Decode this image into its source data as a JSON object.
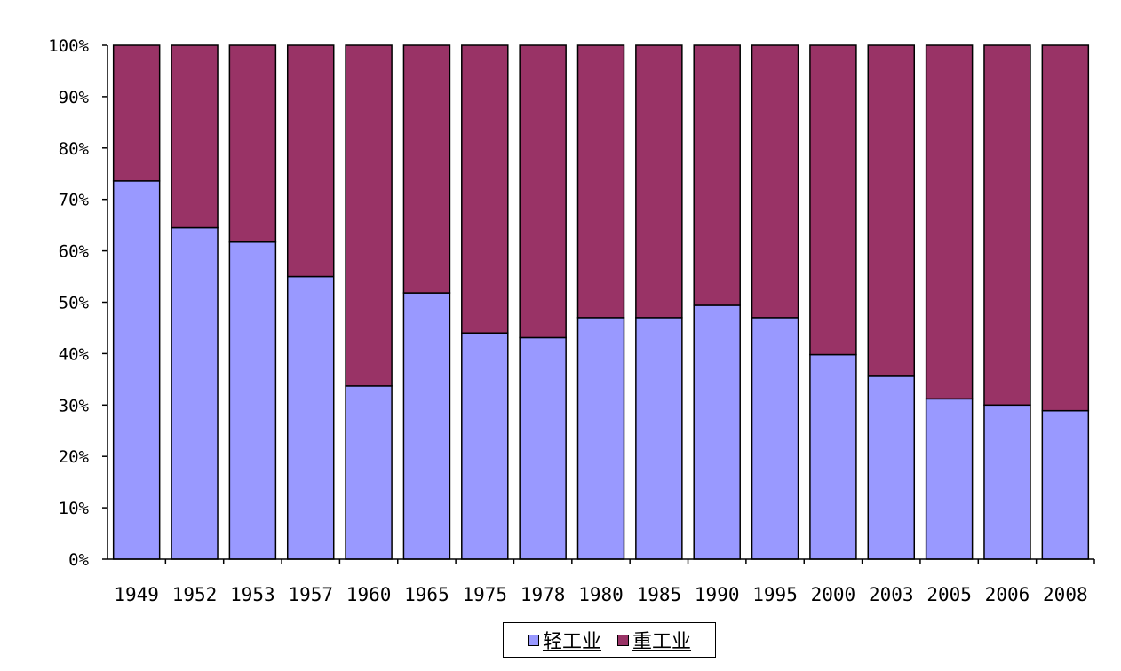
{
  "chart_data": {
    "type": "bar",
    "stacked": true,
    "percent": true,
    "categories": [
      "1949",
      "1952",
      "1953",
      "1957",
      "1960",
      "1965",
      "1975",
      "1978",
      "1980",
      "1985",
      "1990",
      "1995",
      "2000",
      "2003",
      "2005",
      "2006",
      "2008"
    ],
    "series": [
      {
        "name": "轻工业",
        "color": "#9999ff",
        "values": [
          73.6,
          64.5,
          61.7,
          55.0,
          33.7,
          51.8,
          44.0,
          43.1,
          47.0,
          47.0,
          49.4,
          47.0,
          39.8,
          35.6,
          31.2,
          30.0,
          28.9
        ]
      },
      {
        "name": "重工业",
        "color": "#993366",
        "values": [
          26.4,
          35.5,
          38.3,
          45.0,
          66.3,
          48.2,
          56.0,
          56.9,
          53.0,
          53.0,
          50.6,
          53.0,
          60.2,
          64.4,
          68.8,
          70.0,
          71.1
        ]
      }
    ],
    "yticks": [
      "0%",
      "10%",
      "20%",
      "30%",
      "40%",
      "50%",
      "60%",
      "70%",
      "80%",
      "90%",
      "100%"
    ],
    "ylim": [
      0,
      100
    ],
    "grid": false,
    "legend": "bottom"
  }
}
